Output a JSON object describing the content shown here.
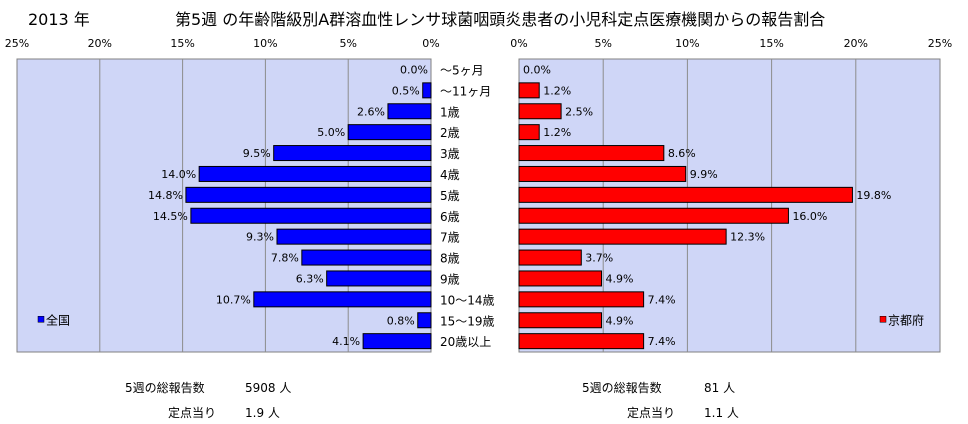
{
  "header": {
    "year": "2013 年",
    "title": "第5週 の年齢階級別A群溶血性レンサ球菌咽頭炎患者の小児科定点医療機関からの報告割合"
  },
  "colors": {
    "plot_bg": "#cfd6f7",
    "national_bar": "#0000ff",
    "kyoto_bar": "#ff0000"
  },
  "chart_data": [
    {
      "type": "bar",
      "orientation": "horizontal",
      "direction": "right-to-left",
      "x_unit": "%",
      "xlim": [
        0,
        25
      ],
      "x_ticks": [
        "25%",
        "20%",
        "15%",
        "10%",
        "5%",
        "0%"
      ],
      "legend": {
        "position": "left",
        "label": "全国"
      },
      "categories": [
        "～5ヶ月",
        "～11ヶ月",
        "1歳",
        "2歳",
        "3歳",
        "4歳",
        "5歳",
        "6歳",
        "7歳",
        "8歳",
        "9歳",
        "10～14歳",
        "15～19歳",
        "20歳以上"
      ],
      "series": [
        {
          "name": "全国",
          "values": [
            0.0,
            0.5,
            2.6,
            5.0,
            9.5,
            14.0,
            14.8,
            14.5,
            9.3,
            7.8,
            6.3,
            10.7,
            0.8,
            4.1
          ],
          "labels": [
            "0.0%",
            "0.5%",
            "2.6%",
            "5.0%",
            "9.5%",
            "14.0%",
            "14.8%",
            "14.5%",
            "9.3%",
            "7.8%",
            "6.3%",
            "10.7%",
            "0.8%",
            "4.1%"
          ]
        }
      ]
    },
    {
      "type": "bar",
      "orientation": "horizontal",
      "direction": "left-to-right",
      "x_unit": "%",
      "xlim": [
        0,
        25
      ],
      "x_ticks": [
        "0%",
        "5%",
        "10%",
        "15%",
        "20%",
        "25%"
      ],
      "legend": {
        "position": "right",
        "label": "京都府"
      },
      "categories": [
        "～5ヶ月",
        "～11ヶ月",
        "1歳",
        "2歳",
        "3歳",
        "4歳",
        "5歳",
        "6歳",
        "7歳",
        "8歳",
        "9歳",
        "10～14歳",
        "15～19歳",
        "20歳以上"
      ],
      "series": [
        {
          "name": "京都府",
          "values": [
            0.0,
            1.2,
            2.5,
            1.2,
            8.6,
            9.9,
            19.8,
            16.0,
            12.3,
            3.7,
            4.9,
            7.4,
            4.9,
            7.4
          ],
          "labels": [
            "0.0%",
            "1.2%",
            "2.5%",
            "1.2%",
            "8.6%",
            "9.9%",
            "19.8%",
            "16.0%",
            "12.3%",
            "3.7%",
            "4.9%",
            "7.4%",
            "4.9%",
            "7.4%"
          ]
        }
      ]
    }
  ],
  "summary": {
    "national": {
      "total_label": "5週の総報告数",
      "total_value": "5908 人",
      "per_site_label": "定点当り",
      "per_site_value": "1.9 人"
    },
    "kyoto": {
      "total_label": "5週の総報告数",
      "total_value": "81 人",
      "per_site_label": "定点当り",
      "per_site_value": "1.1 人"
    }
  }
}
